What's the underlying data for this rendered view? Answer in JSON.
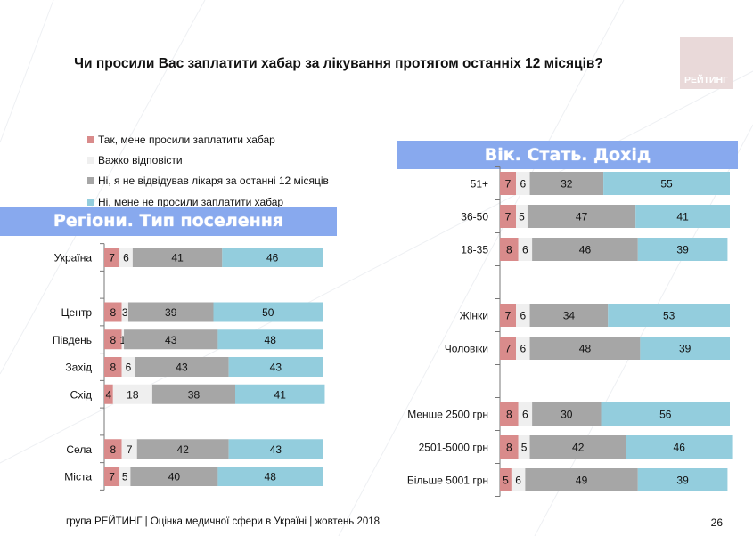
{
  "title": "Чи просили Вас заплатити хабар за лікування протягом останніх 12 місяців?",
  "logo_text": "РЕЙТИНГ",
  "footer": "група РЕЙТИНГ  |  Оцінка медичної сфери в Україні  |  жовтень 2018",
  "page_number": "26",
  "colors": {
    "yes": "#d98b8b",
    "hard": "#efefef",
    "not_visited": "#a6a6a6",
    "no": "#93cddd",
    "band": "#88a9ee"
  },
  "chart_data": [
    {
      "type": "bar",
      "orientation": "horizontal",
      "stacked": true,
      "title": "Регіони. Тип поселення",
      "legend": [
        "Так, мене просили заплатити хабар",
        "Важко відповісти",
        "Ні, я не відвідував лікаря за останні 12 місяців",
        "Ні, мене не просили заплатити хабар"
      ],
      "legend_placement": "top",
      "categories": [
        "Україна",
        "",
        "Центр",
        "Південь",
        "Захід",
        "Схід",
        "",
        "Села",
        "Міста"
      ],
      "series": [
        {
          "name": "Так, мене просили заплатити хабар",
          "values": [
            7,
            null,
            8,
            8,
            8,
            4,
            null,
            8,
            7
          ]
        },
        {
          "name": "Важко відповісти",
          "values": [
            6,
            null,
            3,
            1,
            6,
            18,
            null,
            7,
            5
          ]
        },
        {
          "name": "Ні, я не відвідував лікаря за останні 12 місяців",
          "values": [
            41,
            null,
            39,
            43,
            43,
            38,
            null,
            42,
            40
          ]
        },
        {
          "name": "Ні, мене не просили заплатити хабар",
          "values": [
            46,
            null,
            50,
            48,
            43,
            41,
            null,
            43,
            48
          ]
        }
      ]
    },
    {
      "type": "bar",
      "orientation": "horizontal",
      "stacked": true,
      "title": "Вік. Стать. Дохід",
      "categories": [
        "51+",
        "36-50",
        "18-35",
        "",
        "Жінки",
        "Чоловіки",
        "",
        "Менше 2500 грн",
        "2501-5000 грн",
        "Більше 5001 грн"
      ],
      "series": [
        {
          "name": "Так, мене просили заплатити хабар",
          "values": [
            7,
            7,
            8,
            null,
            7,
            7,
            null,
            8,
            8,
            5
          ]
        },
        {
          "name": "Важко відповісти",
          "values": [
            6,
            5,
            6,
            null,
            6,
            6,
            null,
            6,
            5,
            6
          ]
        },
        {
          "name": "Ні, я не відвідував лікаря за останні 12 місяців",
          "values": [
            32,
            47,
            46,
            null,
            34,
            48,
            null,
            30,
            42,
            49
          ]
        },
        {
          "name": "Ні, мене не просили заплатити хабар",
          "values": [
            55,
            41,
            39,
            null,
            53,
            39,
            null,
            56,
            46,
            39
          ]
        }
      ]
    }
  ]
}
